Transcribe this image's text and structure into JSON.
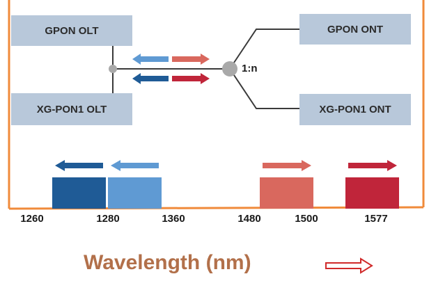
{
  "boxes": {
    "gpon_olt": "GPON OLT",
    "xgpon1_olt": "XG-PON1 OLT",
    "gpon_ont": "GPON ONT",
    "xgpon1_ont": "XG-PON1 ONT"
  },
  "splitter_ratio": "1:n",
  "axis_ticks": [
    "1260",
    "1280",
    "1360",
    "1480",
    "1500",
    "1577"
  ],
  "axis_title": "Wavelength (nm)",
  "colors": {
    "box_fill": "#b8c8da",
    "frame": "#f08a3a",
    "dark_blue": "#1f5b96",
    "light_blue": "#5f9ad3",
    "light_red": "#d9685e",
    "dark_red": "#c0253a",
    "line": "#3a3a3a",
    "node": "#a9a9a9",
    "title": "#b2704a",
    "arrow_outline": "#d02a2a"
  },
  "icons": {
    "downstream": "arrow-right-icon",
    "upstream": "arrow-left-icon",
    "title_arrow": "hollow-arrow-right-icon"
  }
}
